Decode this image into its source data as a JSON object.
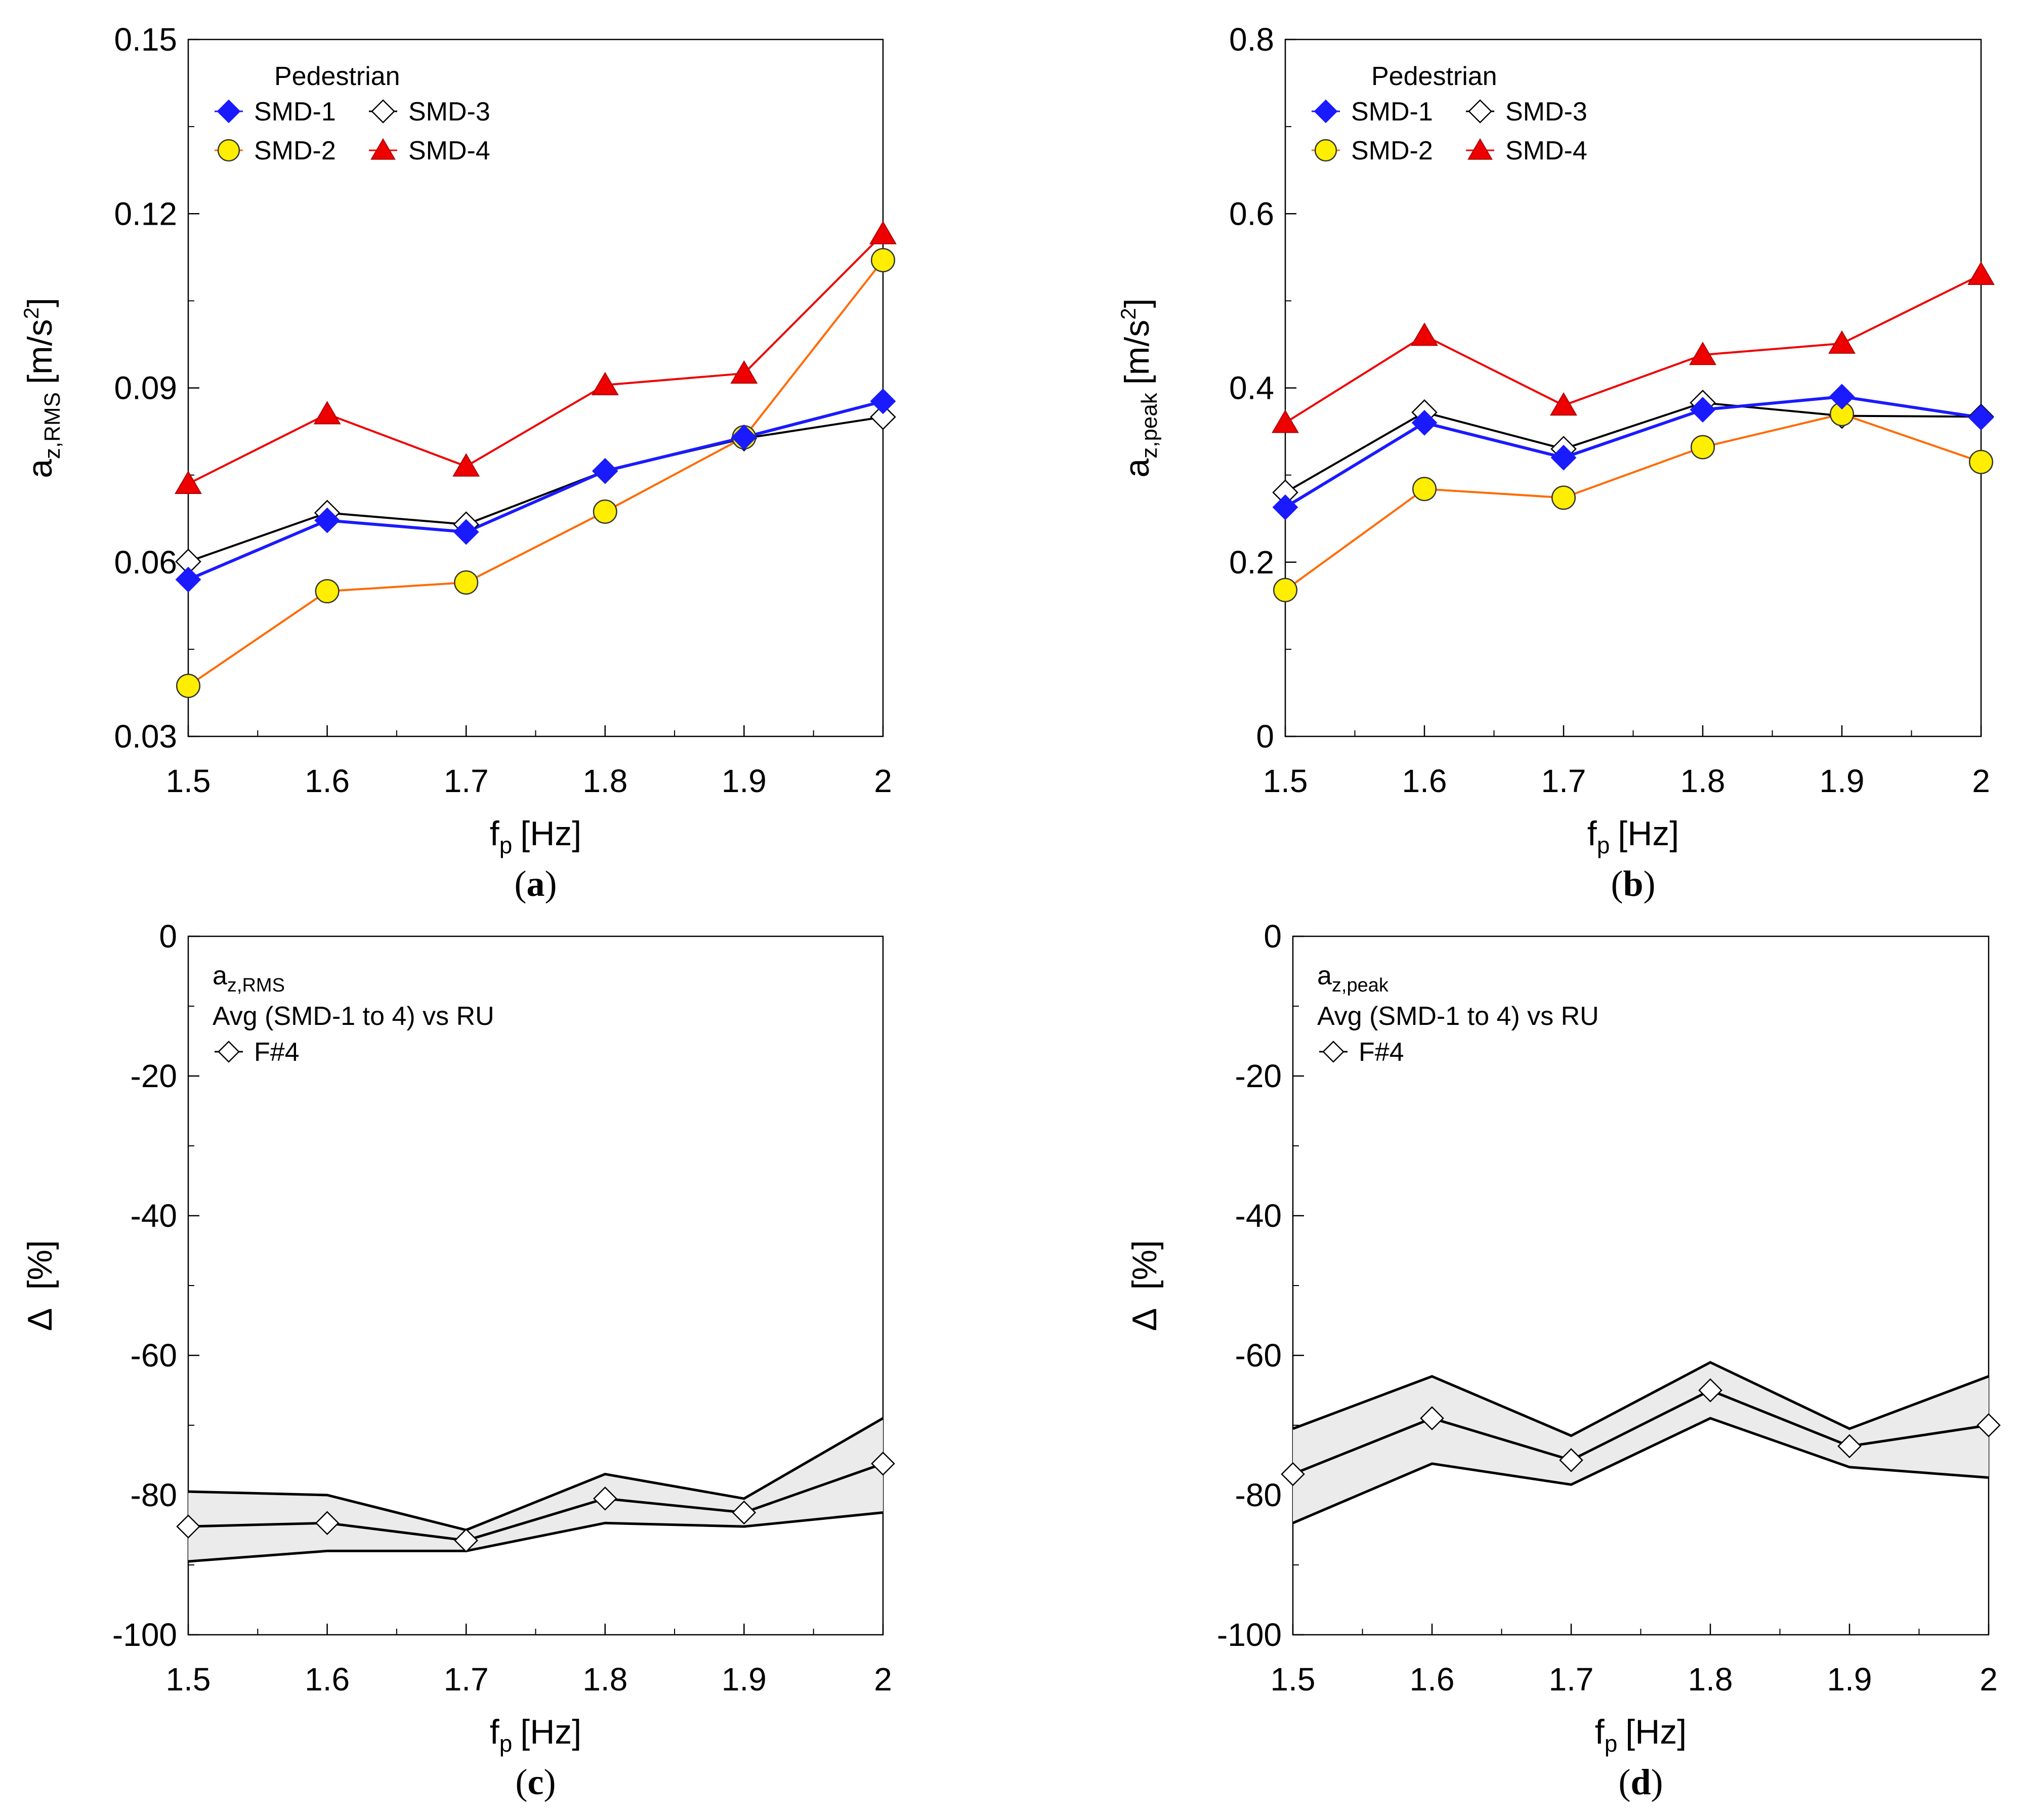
{
  "chart_data": [
    {
      "type": "line",
      "panel": "(a)",
      "panel_letter": "a",
      "xlabel_main": "f",
      "xlabel_sub": "p",
      "xlabel_unit": "[Hz]",
      "ylabel_main": "a",
      "ylabel_sub": "z,RMS",
      "ylabel_unit": "[m/s",
      "ylabel_sup": "2",
      "ylabel_close": "]",
      "xlim": [
        1.5,
        2.0
      ],
      "ylim": [
        0.03,
        0.15
      ],
      "xticks": [
        1.5,
        1.6,
        1.7,
        1.8,
        1.9,
        2.0
      ],
      "xtick_labels": [
        "1.5",
        "1.6",
        "1.7",
        "1.8",
        "1.9",
        "2"
      ],
      "yticks": [
        0.03,
        0.06,
        0.09,
        0.12,
        0.15
      ],
      "ytick_labels": [
        "0.03",
        "0.06",
        "0.09",
        "0.12",
        "0.15"
      ],
      "legend_title": "Pedestrian",
      "x": [
        1.5,
        1.6,
        1.7,
        1.8,
        1.9,
        2.0
      ],
      "series": [
        {
          "name": "SMD-1",
          "marker": "diamond",
          "color": "#1a1aff",
          "line_color": "#1a1aff",
          "values": [
            0.057,
            0.0672,
            0.0652,
            0.0757,
            0.0815,
            0.0877
          ]
        },
        {
          "name": "SMD-2",
          "marker": "circle",
          "color": "#ffee00",
          "line_color": "#ff6a00",
          "values": [
            0.0387,
            0.055,
            0.0565,
            0.0687,
            0.0815,
            0.112
          ]
        },
        {
          "name": "SMD-3",
          "marker": "diamond-open",
          "color": "#ffffff",
          "line_color": "#000000",
          "values": [
            0.0601,
            0.0685,
            0.0665,
            0.0757,
            0.0813,
            0.085
          ]
        },
        {
          "name": "SMD-4",
          "marker": "triangle",
          "color": "#ee0000",
          "line_color": "#ee0000",
          "values": [
            0.0735,
            0.0855,
            0.0765,
            0.0905,
            0.0925,
            0.1165
          ]
        }
      ]
    },
    {
      "type": "line",
      "panel": "(b)",
      "panel_letter": "b",
      "xlabel_main": "f",
      "xlabel_sub": "p",
      "xlabel_unit": "[Hz]",
      "ylabel_main": "a",
      "ylabel_sub": "z,peak",
      "ylabel_unit": "[m/s",
      "ylabel_sup": "2",
      "ylabel_close": "]",
      "xlim": [
        1.5,
        2.0
      ],
      "ylim": [
        0,
        0.8
      ],
      "xticks": [
        1.5,
        1.6,
        1.7,
        1.8,
        1.9,
        2.0
      ],
      "xtick_labels": [
        "1.5",
        "1.6",
        "1.7",
        "1.8",
        "1.9",
        "2"
      ],
      "yticks": [
        0,
        0.2,
        0.4,
        0.6,
        0.8
      ],
      "ytick_labels": [
        "0",
        "0.2",
        "0.4",
        "0.6",
        "0.8"
      ],
      "legend_title": "Pedestrian",
      "x": [
        1.5,
        1.6,
        1.7,
        1.8,
        1.9,
        2.0
      ],
      "series": [
        {
          "name": "SMD-1",
          "marker": "diamond",
          "color": "#1a1aff",
          "line_color": "#1a1aff",
          "values": [
            0.263,
            0.36,
            0.32,
            0.375,
            0.39,
            0.366
          ]
        },
        {
          "name": "SMD-2",
          "marker": "circle",
          "color": "#ffee00",
          "line_color": "#ff6a00",
          "values": [
            0.168,
            0.284,
            0.274,
            0.332,
            0.37,
            0.315
          ]
        },
        {
          "name": "SMD-3",
          "marker": "diamond-open",
          "color": "#ffffff",
          "line_color": "#000000",
          "values": [
            0.28,
            0.372,
            0.33,
            0.383,
            0.368,
            0.367
          ]
        },
        {
          "name": "SMD-4",
          "marker": "triangle",
          "color": "#ee0000",
          "line_color": "#ee0000",
          "values": [
            0.36,
            0.46,
            0.38,
            0.438,
            0.451,
            0.53
          ]
        }
      ]
    },
    {
      "type": "area",
      "panel": "(c)",
      "panel_letter": "c",
      "xlabel_main": "f",
      "xlabel_sub": "p",
      "xlabel_unit": "[Hz]",
      "ylabel_main": "Δ",
      "ylabel_unit": "[%]",
      "xlim": [
        1.5,
        2.0
      ],
      "ylim": [
        -100,
        0
      ],
      "xticks": [
        1.5,
        1.6,
        1.7,
        1.8,
        1.9,
        2.0
      ],
      "xtick_labels": [
        "1.5",
        "1.6",
        "1.7",
        "1.8",
        "1.9",
        "2"
      ],
      "yticks": [
        -100,
        -80,
        -60,
        -40,
        -20,
        0
      ],
      "ytick_labels": [
        "-100",
        "-80",
        "-60",
        "-40",
        "-20",
        "0"
      ],
      "annot_main": "a",
      "annot_sub": "z,RMS",
      "annot_line2": "Avg (SMD-1 to 4)  vs  RU",
      "legend_entry": "F#4",
      "x": [
        1.5,
        1.6,
        1.7,
        1.8,
        1.9,
        2.0
      ],
      "upper": [
        -79.5,
        -80,
        -85,
        -77,
        -80.5,
        -69
      ],
      "lower": [
        -89.5,
        -88,
        -88,
        -84,
        -84.5,
        -82.5
      ],
      "mean": [
        -84.5,
        -84,
        -86.5,
        -80.5,
        -82.5,
        -75.5
      ]
    },
    {
      "type": "area",
      "panel": "(d)",
      "panel_letter": "d",
      "xlabel_main": "f",
      "xlabel_sub": "p",
      "xlabel_unit": "[Hz]",
      "ylabel_main": "Δ",
      "ylabel_unit": "[%]",
      "xlim": [
        1.5,
        2.0
      ],
      "ylim": [
        -100,
        0
      ],
      "xticks": [
        1.5,
        1.6,
        1.7,
        1.8,
        1.9,
        2.0
      ],
      "xtick_labels": [
        "1.5",
        "1.6",
        "1.7",
        "1.8",
        "1.9",
        "2"
      ],
      "yticks": [
        -100,
        -80,
        -60,
        -40,
        -20,
        0
      ],
      "ytick_labels": [
        "-100",
        "-80",
        "-60",
        "-40",
        "-20",
        "0"
      ],
      "annot_main": "a",
      "annot_sub": "z,peak",
      "annot_line2": "Avg (SMD-1 to 4)  vs  RU",
      "legend_entry": "F#4",
      "x": [
        1.5,
        1.6,
        1.7,
        1.8,
        1.9,
        2.0
      ],
      "upper": [
        -70.5,
        -63,
        -71.5,
        -61,
        -70.5,
        -63
      ],
      "lower": [
        -84,
        -75.5,
        -78.5,
        -69,
        -76,
        -77.5
      ],
      "mean": [
        -77,
        -69,
        -75,
        -65,
        -73,
        -70
      ]
    }
  ]
}
